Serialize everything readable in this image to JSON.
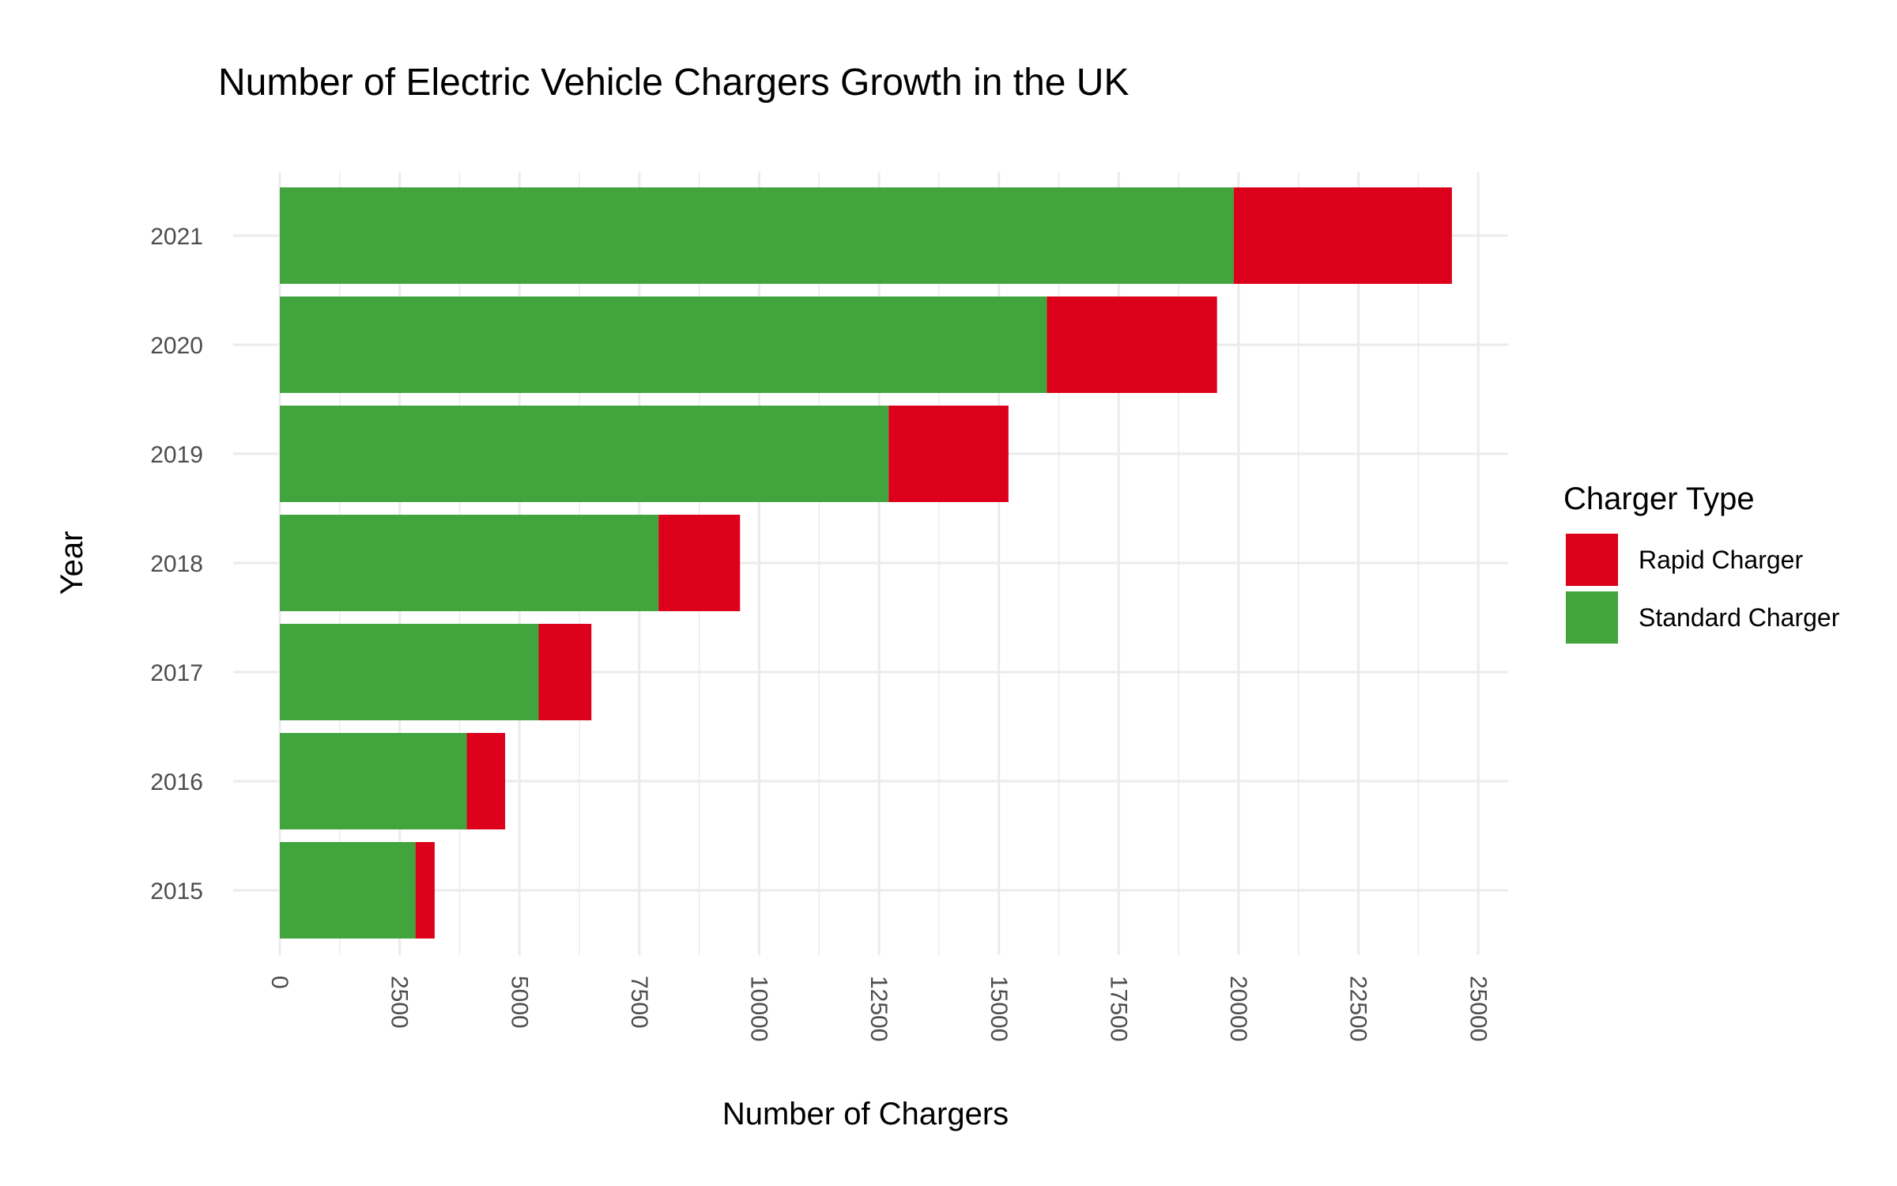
{
  "chart_data": {
    "type": "bar",
    "orientation": "horizontal",
    "stacked": true,
    "title": "Number of Electric Vehicle Chargers Growth in the UK",
    "xlabel": "Number of Chargers",
    "ylabel": "Year",
    "categories": [
      "2015",
      "2016",
      "2017",
      "2018",
      "2019",
      "2020",
      "2021"
    ],
    "xlim": [
      0,
      25000
    ],
    "x_ticks": [
      "0",
      "2500",
      "5000",
      "7500",
      "10000",
      "12500",
      "15000",
      "17500",
      "20000",
      "22500",
      "25000"
    ],
    "x_tick_values": [
      0,
      2500,
      5000,
      7500,
      10000,
      12500,
      15000,
      17500,
      20000,
      22500,
      25000
    ],
    "grid": true,
    "legend": {
      "title": "Charger Type",
      "position": "right",
      "entries": [
        "Rapid Charger",
        "Standard Charger"
      ]
    },
    "series": [
      {
        "name": "Standard Charger",
        "color": "#41a43c",
        "values": [
          2830,
          3900,
          5400,
          7900,
          12700,
          16000,
          19900
        ]
      },
      {
        "name": "Rapid Charger",
        "color": "#dc001a",
        "values": [
          400,
          800,
          1100,
          1700,
          2500,
          3550,
          4550
        ]
      }
    ]
  }
}
